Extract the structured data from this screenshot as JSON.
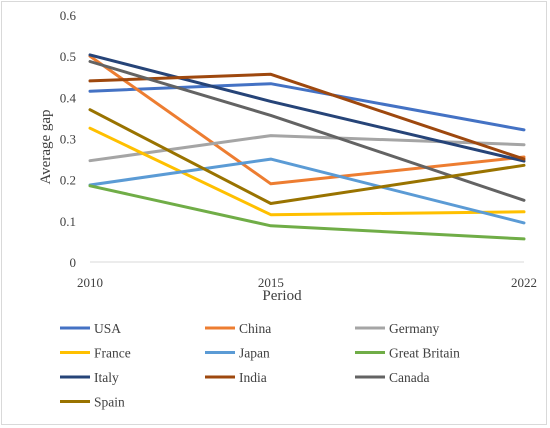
{
  "chart_data": {
    "type": "line",
    "title": "",
    "xlabel": "Period",
    "ylabel": "Average gap",
    "x": [
      "2010",
      "2015",
      "2022"
    ],
    "ylim": [
      0,
      0.6
    ],
    "yticks": [
      "0",
      "0.1",
      "0.2",
      "0.3",
      "0.4",
      "0.5",
      "0.6"
    ],
    "grid": false,
    "legend_position": "bottom",
    "series": [
      {
        "name": "USA",
        "color": "#4472C4",
        "values": [
          0.415,
          0.433,
          0.321
        ]
      },
      {
        "name": "China",
        "color": "#ED7D31",
        "values": [
          0.5,
          0.19,
          0.255
        ]
      },
      {
        "name": "Germany",
        "color": "#A5A5A5",
        "values": [
          0.246,
          0.307,
          0.285
        ]
      },
      {
        "name": "France",
        "color": "#FFC000",
        "values": [
          0.325,
          0.115,
          0.122
        ]
      },
      {
        "name": "Japan",
        "color": "#5B9BD5",
        "values": [
          0.187,
          0.25,
          0.095
        ]
      },
      {
        "name": "Great Britain",
        "color": "#70AD47",
        "values": [
          0.185,
          0.088,
          0.056
        ]
      },
      {
        "name": "Italy",
        "color": "#264478",
        "values": [
          0.503,
          0.39,
          0.245
        ]
      },
      {
        "name": "India",
        "color": "#9E480E",
        "values": [
          0.44,
          0.456,
          0.25
        ]
      },
      {
        "name": "Canada",
        "color": "#636363",
        "values": [
          0.487,
          0.356,
          0.15
        ]
      },
      {
        "name": "Spain",
        "color": "#997300",
        "values": [
          0.37,
          0.142,
          0.235
        ]
      }
    ]
  }
}
